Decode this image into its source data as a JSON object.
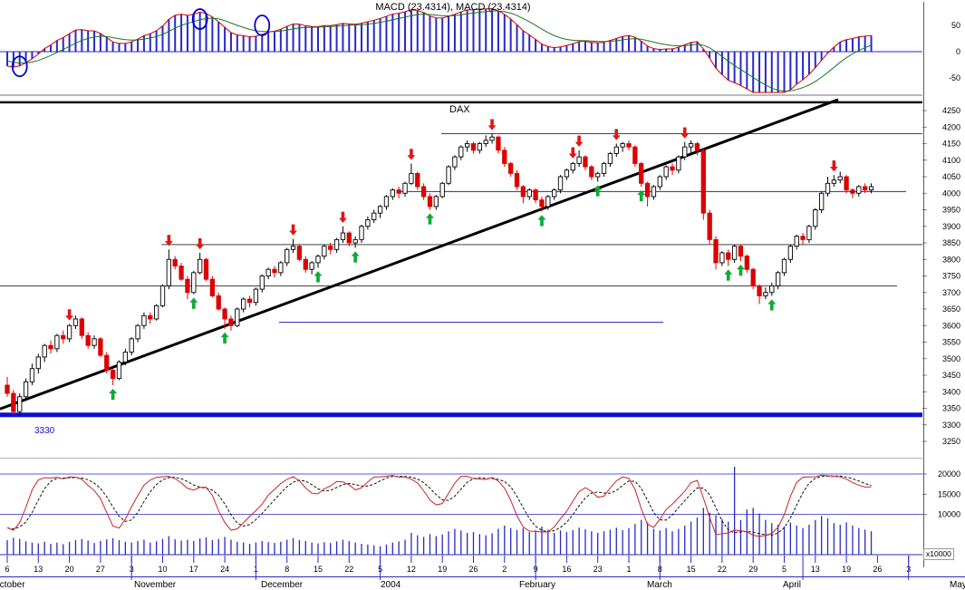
{
  "chart_data": {
    "type": "candlestick",
    "panels": [
      "macd",
      "price",
      "volume"
    ],
    "macd": {
      "title_label": "MACD (23.4314), MACD (23.4314)",
      "value": 23.4314,
      "y_ticks": [
        50,
        0,
        -50
      ],
      "derivation": "macd = EMA12(close) - EMA26(close); signal = EMA9(macd); histogram = macd",
      "circles": [
        {
          "index": 2,
          "value": -28
        },
        {
          "index": 31,
          "value": 62
        },
        {
          "index": 41,
          "value": 50
        }
      ]
    },
    "price": {
      "instrument": "DAX",
      "support_label": "3330",
      "y_ticks": [
        4250,
        4200,
        4150,
        4100,
        4050,
        4000,
        3950,
        3900,
        3850,
        3800,
        3750,
        3700,
        3650,
        3600,
        3550,
        3500,
        3450,
        3400,
        3350,
        3300,
        3250
      ],
      "levels": [
        {
          "price": 4275,
          "x1": 0,
          "x2": 1018,
          "color": "#111111",
          "width": 2.4
        },
        {
          "price": 4180,
          "x1": 487,
          "x2": 1018,
          "color": "#444444",
          "width": 1
        },
        {
          "price": 4005,
          "x1": 440,
          "x2": 1000,
          "color": "#2222bb",
          "width": 1
        },
        {
          "price": 3845,
          "x1": 178,
          "x2": 1018,
          "color": "#444444",
          "width": 1
        },
        {
          "price": 3720,
          "x1": 0,
          "x2": 990,
          "color": "#444444",
          "width": 1
        },
        {
          "price": 3610,
          "x1": 308,
          "x2": 732,
          "color": "#2222bb",
          "width": 1
        },
        {
          "price": 3330,
          "x1": 0,
          "x2": 1018,
          "color": "#0f0fd0",
          "width": 5
        }
      ],
      "trendline": {
        "x1": 0,
        "price1": 3348,
        "x2": 925,
        "price2": 4283
      },
      "signals": {
        "sell_indices": [
          10,
          26,
          31,
          46,
          54,
          65,
          78,
          91,
          92,
          98,
          109,
          133
        ],
        "buy_indices": [
          17,
          30,
          35,
          50,
          56,
          68,
          86,
          95,
          102,
          116,
          118,
          123
        ]
      }
    },
    "candles": [
      [
        3420,
        3445,
        3385,
        3395
      ],
      [
        3395,
        3405,
        3330,
        3340
      ],
      [
        3340,
        3395,
        3328,
        3385
      ],
      [
        3385,
        3440,
        3375,
        3430
      ],
      [
        3430,
        3485,
        3420,
        3470
      ],
      [
        3470,
        3515,
        3455,
        3505
      ],
      [
        3505,
        3545,
        3490,
        3540
      ],
      [
        3540,
        3555,
        3515,
        3530
      ],
      [
        3530,
        3575,
        3520,
        3570
      ],
      [
        3570,
        3585,
        3545,
        3560
      ],
      [
        3560,
        3605,
        3550,
        3600
      ],
      [
        3600,
        3630,
        3590,
        3620
      ],
      [
        3620,
        3625,
        3560,
        3570
      ],
      [
        3570,
        3580,
        3530,
        3540
      ],
      [
        3540,
        3570,
        3530,
        3560
      ],
      [
        3560,
        3565,
        3505,
        3510
      ],
      [
        3510,
        3520,
        3455,
        3465
      ],
      [
        3465,
        3470,
        3420,
        3440
      ],
      [
        3440,
        3495,
        3435,
        3490
      ],
      [
        3490,
        3530,
        3480,
        3520
      ],
      [
        3520,
        3565,
        3510,
        3560
      ],
      [
        3560,
        3605,
        3550,
        3600
      ],
      [
        3600,
        3640,
        3590,
        3630
      ],
      [
        3630,
        3640,
        3605,
        3620
      ],
      [
        3620,
        3665,
        3615,
        3660
      ],
      [
        3660,
        3725,
        3655,
        3720
      ],
      [
        3720,
        3830,
        3710,
        3800
      ],
      [
        3800,
        3810,
        3770,
        3780
      ],
      [
        3780,
        3790,
        3735,
        3740
      ],
      [
        3740,
        3750,
        3680,
        3700
      ],
      [
        3700,
        3765,
        3695,
        3760
      ],
      [
        3760,
        3820,
        3755,
        3800
      ],
      [
        3800,
        3805,
        3735,
        3740
      ],
      [
        3740,
        3750,
        3685,
        3690
      ],
      [
        3690,
        3700,
        3645,
        3650
      ],
      [
        3650,
        3655,
        3590,
        3620
      ],
      [
        3620,
        3630,
        3585,
        3600
      ],
      [
        3600,
        3655,
        3595,
        3650
      ],
      [
        3650,
        3685,
        3640,
        3680
      ],
      [
        3680,
        3690,
        3655,
        3670
      ],
      [
        3670,
        3715,
        3660,
        3710
      ],
      [
        3710,
        3755,
        3700,
        3750
      ],
      [
        3750,
        3775,
        3740,
        3770
      ],
      [
        3770,
        3780,
        3745,
        3760
      ],
      [
        3760,
        3795,
        3750,
        3790
      ],
      [
        3790,
        3835,
        3780,
        3830
      ],
      [
        3830,
        3862,
        3820,
        3840
      ],
      [
        3840,
        3845,
        3795,
        3800
      ],
      [
        3800,
        3810,
        3760,
        3770
      ],
      [
        3770,
        3795,
        3755,
        3790
      ],
      [
        3790,
        3815,
        3775,
        3810
      ],
      [
        3810,
        3845,
        3800,
        3840
      ],
      [
        3840,
        3850,
        3815,
        3830
      ],
      [
        3830,
        3865,
        3820,
        3860
      ],
      [
        3860,
        3900,
        3850,
        3880
      ],
      [
        3880,
        3885,
        3840,
        3850
      ],
      [
        3850,
        3870,
        3835,
        3860
      ],
      [
        3860,
        3905,
        3850,
        3900
      ],
      [
        3900,
        3930,
        3890,
        3920
      ],
      [
        3920,
        3950,
        3910,
        3940
      ],
      [
        3940,
        3965,
        3925,
        3960
      ],
      [
        3960,
        3995,
        3950,
        3990
      ],
      [
        3990,
        4015,
        3980,
        4010
      ],
      [
        4010,
        4020,
        3985,
        4000
      ],
      [
        4000,
        4035,
        3990,
        4030
      ],
      [
        4030,
        4090,
        4025,
        4060
      ],
      [
        4060,
        4065,
        4010,
        4020
      ],
      [
        4020,
        4030,
        3980,
        3990
      ],
      [
        3990,
        4000,
        3950,
        3960
      ],
      [
        3960,
        3995,
        3950,
        3990
      ],
      [
        3990,
        4035,
        3985,
        4030
      ],
      [
        4030,
        4085,
        4025,
        4080
      ],
      [
        4080,
        4115,
        4070,
        4110
      ],
      [
        4110,
        4145,
        4100,
        4140
      ],
      [
        4140,
        4160,
        4125,
        4150
      ],
      [
        4150,
        4155,
        4120,
        4130
      ],
      [
        4130,
        4155,
        4120,
        4150
      ],
      [
        4150,
        4175,
        4140,
        4160
      ],
      [
        4160,
        4180,
        4150,
        4170
      ],
      [
        4170,
        4175,
        4120,
        4130
      ],
      [
        4130,
        4140,
        4080,
        4090
      ],
      [
        4090,
        4095,
        4050,
        4060
      ],
      [
        4060,
        4070,
        4010,
        4020
      ],
      [
        4020,
        4025,
        3970,
        3990
      ],
      [
        3990,
        4015,
        3980,
        4010
      ],
      [
        4010,
        4015,
        3970,
        3980
      ],
      [
        3980,
        3990,
        3945,
        3960
      ],
      [
        3960,
        3995,
        3950,
        3990
      ],
      [
        3990,
        4015,
        3980,
        4010
      ],
      [
        4010,
        4055,
        4000,
        4050
      ],
      [
        4050,
        4075,
        4040,
        4070
      ],
      [
        4070,
        4095,
        4060,
        4090
      ],
      [
        4090,
        4130,
        4080,
        4110
      ],
      [
        4110,
        4115,
        4070,
        4080
      ],
      [
        4080,
        4085,
        4040,
        4050
      ],
      [
        4050,
        4065,
        4035,
        4060
      ],
      [
        4060,
        4095,
        4050,
        4090
      ],
      [
        4090,
        4125,
        4080,
        4120
      ],
      [
        4120,
        4150,
        4110,
        4140
      ],
      [
        4140,
        4155,
        4125,
        4150
      ],
      [
        4150,
        4160,
        4130,
        4140
      ],
      [
        4140,
        4145,
        4080,
        4090
      ],
      [
        4090,
        4095,
        4020,
        4030
      ],
      [
        4030,
        4035,
        3960,
        3990
      ],
      [
        3990,
        4025,
        3980,
        4020
      ],
      [
        4020,
        4055,
        4010,
        4050
      ],
      [
        4050,
        4085,
        4040,
        4080
      ],
      [
        4080,
        4090,
        4055,
        4070
      ],
      [
        4070,
        4115,
        4060,
        4110
      ],
      [
        4110,
        4155,
        4100,
        4140
      ],
      [
        4140,
        4160,
        4120,
        4150
      ],
      [
        4150,
        4155,
        4115,
        4130
      ],
      [
        4130,
        4135,
        3920,
        3940
      ],
      [
        3940,
        3950,
        3845,
        3860
      ],
      [
        3860,
        3870,
        3770,
        3790
      ],
      [
        3790,
        3825,
        3780,
        3820
      ],
      [
        3820,
        3830,
        3780,
        3800
      ],
      [
        3800,
        3845,
        3790,
        3840
      ],
      [
        3840,
        3845,
        3795,
        3810
      ],
      [
        3810,
        3815,
        3760,
        3770
      ],
      [
        3770,
        3775,
        3710,
        3720
      ],
      [
        3720,
        3725,
        3665,
        3690
      ],
      [
        3690,
        3715,
        3680,
        3700
      ],
      [
        3700,
        3730,
        3690,
        3720
      ],
      [
        3720,
        3765,
        3710,
        3760
      ],
      [
        3760,
        3805,
        3750,
        3800
      ],
      [
        3800,
        3845,
        3790,
        3840
      ],
      [
        3840,
        3875,
        3830,
        3870
      ],
      [
        3870,
        3880,
        3845,
        3860
      ],
      [
        3860,
        3905,
        3850,
        3900
      ],
      [
        3900,
        3955,
        3890,
        3950
      ],
      [
        3950,
        4005,
        3940,
        4000
      ],
      [
        4000,
        4050,
        3990,
        4030
      ],
      [
        4030,
        4055,
        4020,
        4040
      ],
      [
        4040,
        4065,
        4030,
        4050
      ],
      [
        4050,
        4055,
        4000,
        4010
      ],
      [
        4010,
        4015,
        3985,
        4000
      ],
      [
        4000,
        4025,
        3990,
        4020
      ],
      [
        4020,
        4030,
        4000,
        4010
      ],
      [
        4010,
        4030,
        4000,
        4020
      ]
    ],
    "volume": {
      "scale_label": "x10000",
      "y_ticks": [
        20000,
        15000,
        10000
      ],
      "values": [
        3600,
        4200,
        3900,
        3300,
        3000,
        2800,
        3200,
        2700,
        3000,
        2600,
        3200,
        3600,
        3900,
        3500,
        2900,
        3400,
        3800,
        4100,
        3600,
        3200,
        3000,
        3400,
        3700,
        3000,
        3300,
        3900,
        4600,
        3800,
        3500,
        3700,
        3400,
        4000,
        4300,
        3600,
        3900,
        4400,
        3700,
        3200,
        3000,
        2700,
        3000,
        3400,
        3100,
        2900,
        3200,
        3700,
        4100,
        3600,
        3400,
        3000,
        2800,
        3100,
        2900,
        3300,
        3700,
        3400,
        3000,
        2700,
        2500,
        2300,
        2100,
        2500,
        3000,
        3300,
        3700,
        5400,
        4800,
        4400,
        5100,
        4600,
        5000,
        5800,
        6400,
        6000,
        5400,
        5600,
        5100,
        4800,
        5300,
        6400,
        7200,
        6600,
        6100,
        6600,
        5600,
        6000,
        7000,
        6200,
        5400,
        6000,
        5600,
        6100,
        6700,
        6300,
        5800,
        5400,
        5800,
        6200,
        6700,
        6100,
        6600,
        7600,
        8600,
        8000,
        6400,
        6000,
        6600,
        5800,
        6400,
        7200,
        8200,
        9200,
        11600,
        10400,
        9800,
        8800,
        8200,
        21800,
        8600,
        11200,
        11600,
        10200,
        8600,
        7800,
        7400,
        7000,
        8000,
        7200,
        6600,
        7400,
        8600,
        9600,
        9000,
        7800,
        7400,
        8000,
        7200,
        6600,
        6200,
        5800
      ],
      "oscillator_derivation": "stochastic-like: K = smoothed percent position of close in 12-bar range; dashed = 4-bar average"
    },
    "x_axis": {
      "week_labels": [
        "6",
        "13",
        "20",
        "27",
        "3",
        "10",
        "17",
        "24",
        "1",
        "8",
        "15",
        "22",
        "5",
        "12",
        "19",
        "26",
        "2",
        "9",
        "16",
        "23",
        "1",
        "8",
        "15",
        "22",
        "29",
        "5",
        "13",
        "19",
        "26",
        "3"
      ],
      "month_labels": [
        {
          "text": "October",
          "x": -8
        },
        {
          "text": "November",
          "x": 148
        },
        {
          "text": "December",
          "x": 288
        },
        {
          "text": "2004",
          "x": 420
        },
        {
          "text": "February",
          "x": 573
        },
        {
          "text": "March",
          "x": 714
        },
        {
          "text": "April",
          "x": 864
        },
        {
          "text": "May",
          "x": 1048
        }
      ],
      "month_tick_indices": [
        20,
        40,
        60,
        85,
        105,
        128,
        145
      ]
    },
    "colors": {
      "up_candle": "#ffffff",
      "up_outline": "#000000",
      "down_candle": "#dd0000",
      "buy_arrow": "#00b22d",
      "sell_arrow": "#ee1111",
      "histogram": "#2929c8",
      "volume_bar": "#2929c8",
      "macd_line": "#cc0000",
      "macd_signal_line": "#1a7a1a",
      "oscillator_line": "#cc2222",
      "oscillator_signal_line": "#111111",
      "grid_blue": "#2929c8",
      "trendline": "#000000",
      "annotation_circle": "#0000cc",
      "axis_text": "#000000"
    }
  }
}
